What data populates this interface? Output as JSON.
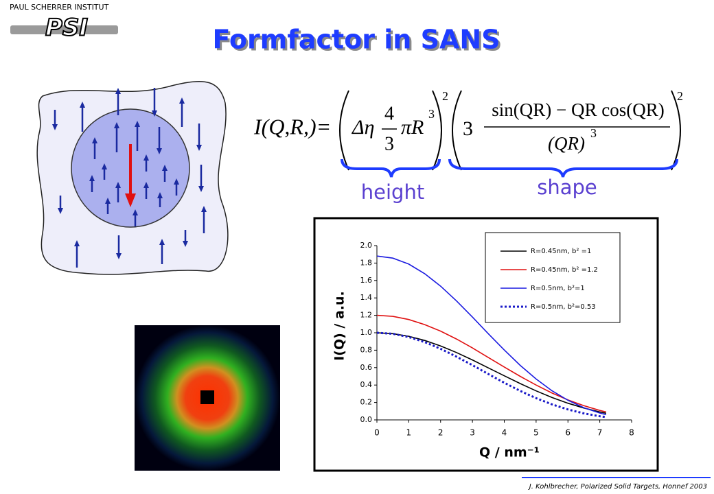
{
  "header": {
    "institute": "PAUL SCHERRER INSTITUT",
    "logo": "PSI"
  },
  "title": "Formfactor in SANS",
  "formula": {
    "lhs": "I(Q,R,)=",
    "eta": "Δη",
    "num": "4",
    "den": "3",
    "pr": "πR",
    "cube": "3",
    "square": "2",
    "three": "3",
    "num2": "sin(QR) − QR cos(QR)",
    "den2": "(QR)"
  },
  "braces": {
    "height": "height",
    "shape": "shape"
  },
  "footer": "J. Kohlbrecher, Polarized Solid Targets, Honnef 2003",
  "chart_data": {
    "type": "line",
    "x_label": "Q / nm⁻¹",
    "y_label": "I(Q)  / a.u.",
    "x": [
      0,
      0.5,
      1,
      1.5,
      2,
      2.5,
      3,
      3.5,
      4,
      4.5,
      5,
      5.5,
      6,
      6.5,
      7,
      7.2
    ],
    "series": [
      {
        "name": "R=0.45nm, b² =1",
        "color": "#000000",
        "style": "solid",
        "values": [
          1,
          0.99,
          0.96,
          0.912,
          0.849,
          0.773,
          0.688,
          0.597,
          0.506,
          0.417,
          0.333,
          0.257,
          0.191,
          0.136,
          0.091,
          0.076
        ]
      },
      {
        "name": "R=0.45nm, b² =1.2",
        "color": "#e01010",
        "style": "solid",
        "values": [
          1.2,
          1.188,
          1.152,
          1.094,
          1.019,
          0.928,
          0.826,
          0.716,
          0.607,
          0.5,
          0.4,
          0.308,
          0.229,
          0.163,
          0.109,
          0.091
        ]
      },
      {
        "name": "R=0.5nm,   b²=1",
        "color": "#1a1ae0",
        "style": "solid",
        "values": [
          1.88,
          1.857,
          1.788,
          1.678,
          1.535,
          1.365,
          1.18,
          0.989,
          0.802,
          0.626,
          0.469,
          0.334,
          0.225,
          0.14,
          0.079,
          0.06
        ]
      },
      {
        "name": "R=0.5nm,   b²=0.53",
        "color": "#1a1ac8",
        "style": "dotted",
        "values": [
          1.0,
          0.988,
          0.951,
          0.893,
          0.816,
          0.726,
          0.628,
          0.526,
          0.427,
          0.333,
          0.25,
          0.178,
          0.12,
          0.075,
          0.042,
          0.032
        ]
      }
    ],
    "xlim": [
      0,
      8
    ],
    "xticks": [
      0,
      1,
      2,
      3,
      4,
      5,
      6,
      7,
      8
    ],
    "ylim": [
      0,
      2
    ],
    "yticks": [
      {
        "value": 0,
        "label": "0.0"
      },
      0.2,
      0.4,
      0.6,
      0.8,
      {
        "value": 1,
        "label": "1.0"
      },
      1.2,
      1.4,
      1.6,
      1.8,
      {
        "value": 2,
        "label": "2.0"
      }
    ],
    "legend": "upper right",
    "grid": false
  }
}
